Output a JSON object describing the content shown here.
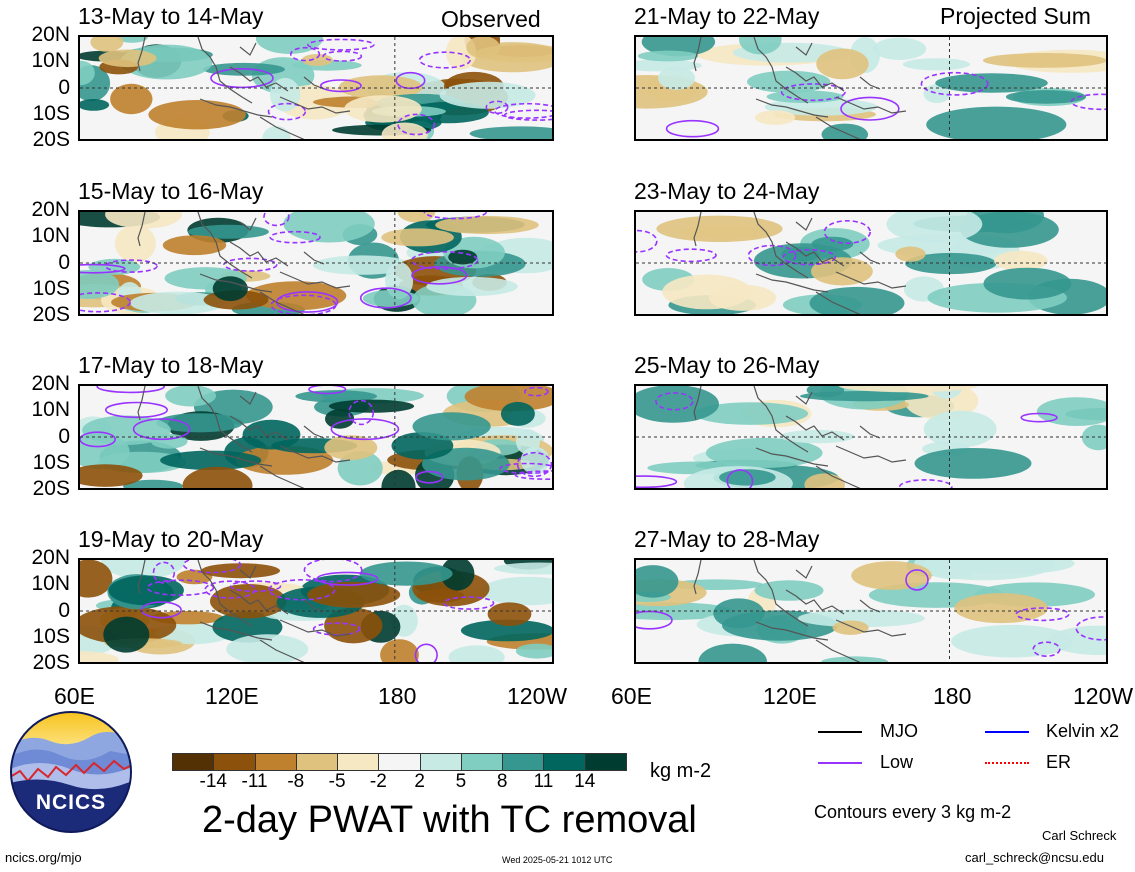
{
  "header": {
    "observed_label": "Observed",
    "projected_label": "Projected Sum"
  },
  "lat_labels": [
    "20N",
    "10N",
    "0",
    "10S",
    "20S"
  ],
  "lon_labels": [
    "60E",
    "120E",
    "180",
    "120W",
    "60E",
    "120E",
    "180",
    "120W"
  ],
  "panels": [
    {
      "title": "13-May to 14-May",
      "column": "observed"
    },
    {
      "title": "15-May to 16-May",
      "column": "observed"
    },
    {
      "title": "17-May to 18-May",
      "column": "observed"
    },
    {
      "title": "19-May to 20-May",
      "column": "observed"
    },
    {
      "title": "21-May to 22-May",
      "column": "projected"
    },
    {
      "title": "23-May to 24-May",
      "column": "projected"
    },
    {
      "title": "25-May to 26-May",
      "column": "projected"
    },
    {
      "title": "27-May to 28-May",
      "column": "projected"
    }
  ],
  "colorbar": {
    "colors": [
      "#543005",
      "#8c510a",
      "#bf812d",
      "#dfc27d",
      "#f6e8c3",
      "#f5f5f5",
      "#c7eae5",
      "#80cdc1",
      "#35978f",
      "#01665e",
      "#003c30"
    ],
    "labels": [
      "-14",
      "-11",
      "-8",
      "-5",
      "-2",
      "2",
      "5",
      "8",
      "11",
      "14"
    ],
    "units": "kg m-2"
  },
  "title": "2-day PWAT with TC removal",
  "legend": {
    "items": [
      {
        "label": "MJO",
        "color": "#000000"
      },
      {
        "label": "Kelvin x2",
        "color": "#0000ff"
      },
      {
        "label": "Low",
        "color": "#9933ff"
      },
      {
        "label": "ER",
        "color": "#ff0000"
      }
    ],
    "contour_note": "Contours every 3 kg m-2"
  },
  "logo": {
    "text": "NCICS"
  },
  "footer": {
    "url": "ncics.org/mjo",
    "timestamp": "Wed 2025-05-21 1012 UTC",
    "author": "Carl Schreck",
    "email": "carl_schreck@ncsu.edu"
  }
}
